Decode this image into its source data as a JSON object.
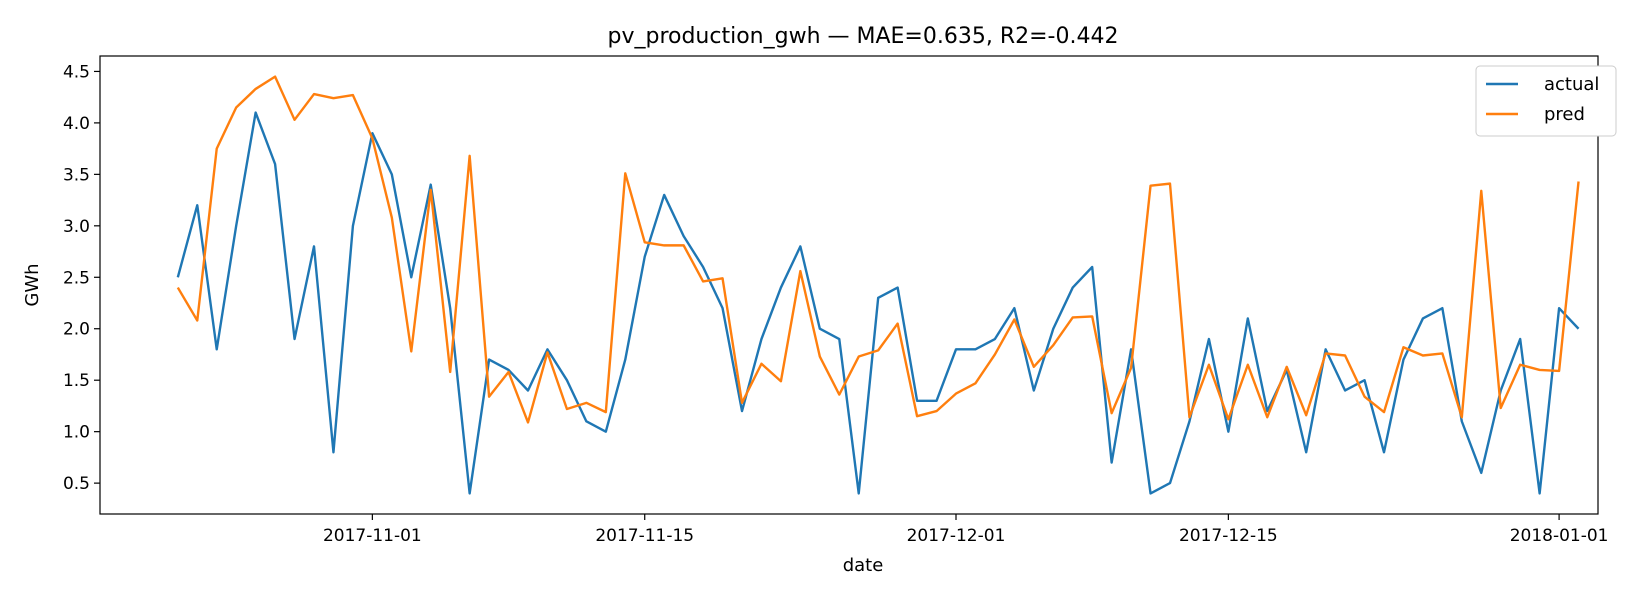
{
  "chart_data": {
    "type": "line",
    "title": "pv_production_gwh — MAE=0.635, R2=-0.442",
    "xlabel": "date",
    "ylabel": "GWh",
    "x_start": "2017-10-22",
    "x_end": "2018-01-01",
    "xlim": [
      "2017-10-18",
      "2018-01-03"
    ],
    "ylim": [
      0.2,
      4.65
    ],
    "x_ticks": [
      "2017-11-01",
      "2017-11-15",
      "2017-12-01",
      "2017-12-15",
      "2018-01-01"
    ],
    "y_ticks": [
      "0.5",
      "1.0",
      "1.5",
      "2.0",
      "2.5",
      "3.0",
      "3.5",
      "4.0",
      "4.5"
    ],
    "grid": false,
    "legend_position": "top-right",
    "series": [
      {
        "name": "actual",
        "color": "#1f77b4",
        "values": [
          2.5,
          3.2,
          1.8,
          3.0,
          4.1,
          3.6,
          1.9,
          2.8,
          0.8,
          3.0,
          3.9,
          3.5,
          2.5,
          3.4,
          2.2,
          0.4,
          1.7,
          1.6,
          1.4,
          1.8,
          1.5,
          1.1,
          1.0,
          1.7,
          2.7,
          3.3,
          2.9,
          2.6,
          2.2,
          1.2,
          1.9,
          2.4,
          2.8,
          2.0,
          1.9,
          0.4,
          2.3,
          2.4,
          1.3,
          1.3,
          1.8,
          1.8,
          1.9,
          2.2,
          1.4,
          2.0,
          2.4,
          2.6,
          0.7,
          1.8,
          0.4,
          0.5,
          1.1,
          1.9,
          1.0,
          2.1,
          1.2,
          1.6,
          0.8,
          1.8,
          1.4,
          1.5,
          0.8,
          1.7,
          2.1,
          2.2,
          1.1,
          0.6,
          1.4,
          1.9,
          0.4,
          2.2,
          2.0
        ]
      },
      {
        "name": "pred",
        "color": "#ff7f0e",
        "values": [
          2.4,
          2.08,
          3.75,
          4.15,
          4.33,
          4.45,
          4.03,
          4.28,
          4.24,
          4.27,
          3.85,
          3.08,
          1.78,
          3.35,
          1.58,
          3.68,
          1.34,
          1.58,
          1.09,
          1.77,
          1.22,
          1.28,
          1.19,
          3.51,
          2.84,
          2.81,
          2.81,
          2.46,
          2.49,
          1.28,
          1.66,
          1.49,
          2.56,
          1.73,
          1.36,
          1.73,
          1.79,
          2.05,
          1.15,
          1.2,
          1.37,
          1.47,
          1.75,
          2.09,
          1.63,
          1.84,
          2.11,
          2.12,
          1.18,
          1.62,
          3.39,
          3.41,
          1.14,
          1.65,
          1.12,
          1.65,
          1.14,
          1.63,
          1.16,
          1.76,
          1.74,
          1.34,
          1.19,
          1.82,
          1.74,
          1.76,
          1.14,
          3.34,
          1.23,
          1.65,
          1.6,
          1.59,
          3.43
        ]
      }
    ]
  }
}
